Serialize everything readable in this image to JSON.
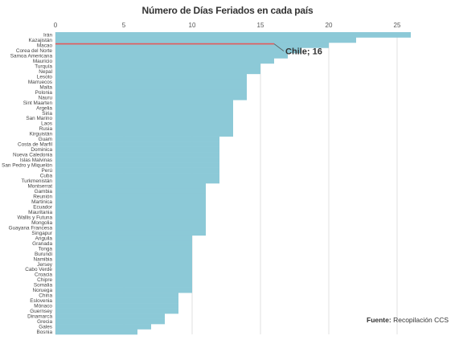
{
  "chart_data": {
    "type": "bar",
    "orientation": "horizontal",
    "title": "Número de Días Feriados en cada país",
    "xlim": [
      0,
      26
    ],
    "xticks": [
      0,
      5,
      10,
      15,
      20,
      25
    ],
    "grid": true,
    "bar_color": "#8cc9d7",
    "highlight_color": "#e45a5a",
    "categories": [
      "Irán",
      "Kazajistán",
      "Macao",
      "Corea del Norte",
      "Samoa Americana",
      "Mauricio",
      "Turquía",
      "Nepal",
      "Lesoto",
      "Marruecos",
      "Malta",
      "Polonia",
      "Nauru",
      "Sint Maarten",
      "Argelia",
      "Siria",
      "San Marino",
      "Laos",
      "Rusia",
      "Kirguistán",
      "Guam",
      "Costa de Marfil",
      "Dominica",
      "Nueva Caledonia",
      "Islas Malvinas",
      "San Pedro y Miquelón",
      "Perú",
      "Cuba",
      "Turkmenistán",
      "Montserrat",
      "Gambia",
      "Reunión",
      "Martinica",
      "Ecuador",
      "Mauritania",
      "Wallis y Futuna",
      "Mongolia",
      "Guayana Francesa",
      "Singapur",
      "Anguila",
      "Granada",
      "Tonga",
      "Burundi",
      "Namibia",
      "Jersey",
      "Cabo Verde",
      "Croacia",
      "Chipre",
      "Somalia",
      "Noruega",
      "China",
      "Eslovenia",
      "Mónaco",
      "Guernsey",
      "Dinamarca",
      "Grecia",
      "Gales",
      "Bosnia"
    ],
    "values": [
      26,
      22,
      20,
      18,
      17,
      16,
      15,
      15,
      14,
      14,
      14,
      14,
      14,
      13,
      13,
      13,
      13,
      13,
      13,
      13,
      12,
      12,
      12,
      12,
      12,
      12,
      12,
      12,
      12,
      11,
      11,
      11,
      11,
      11,
      11,
      11,
      11,
      11,
      11,
      10,
      10,
      10,
      10,
      10,
      10,
      10,
      10,
      10,
      10,
      10,
      9,
      9,
      9,
      9,
      8,
      8,
      7,
      6
    ],
    "annotation": {
      "label": "Chile; 16",
      "value": 16
    },
    "source_label": "Fuente:",
    "source_text": "Recopilación CCS"
  }
}
